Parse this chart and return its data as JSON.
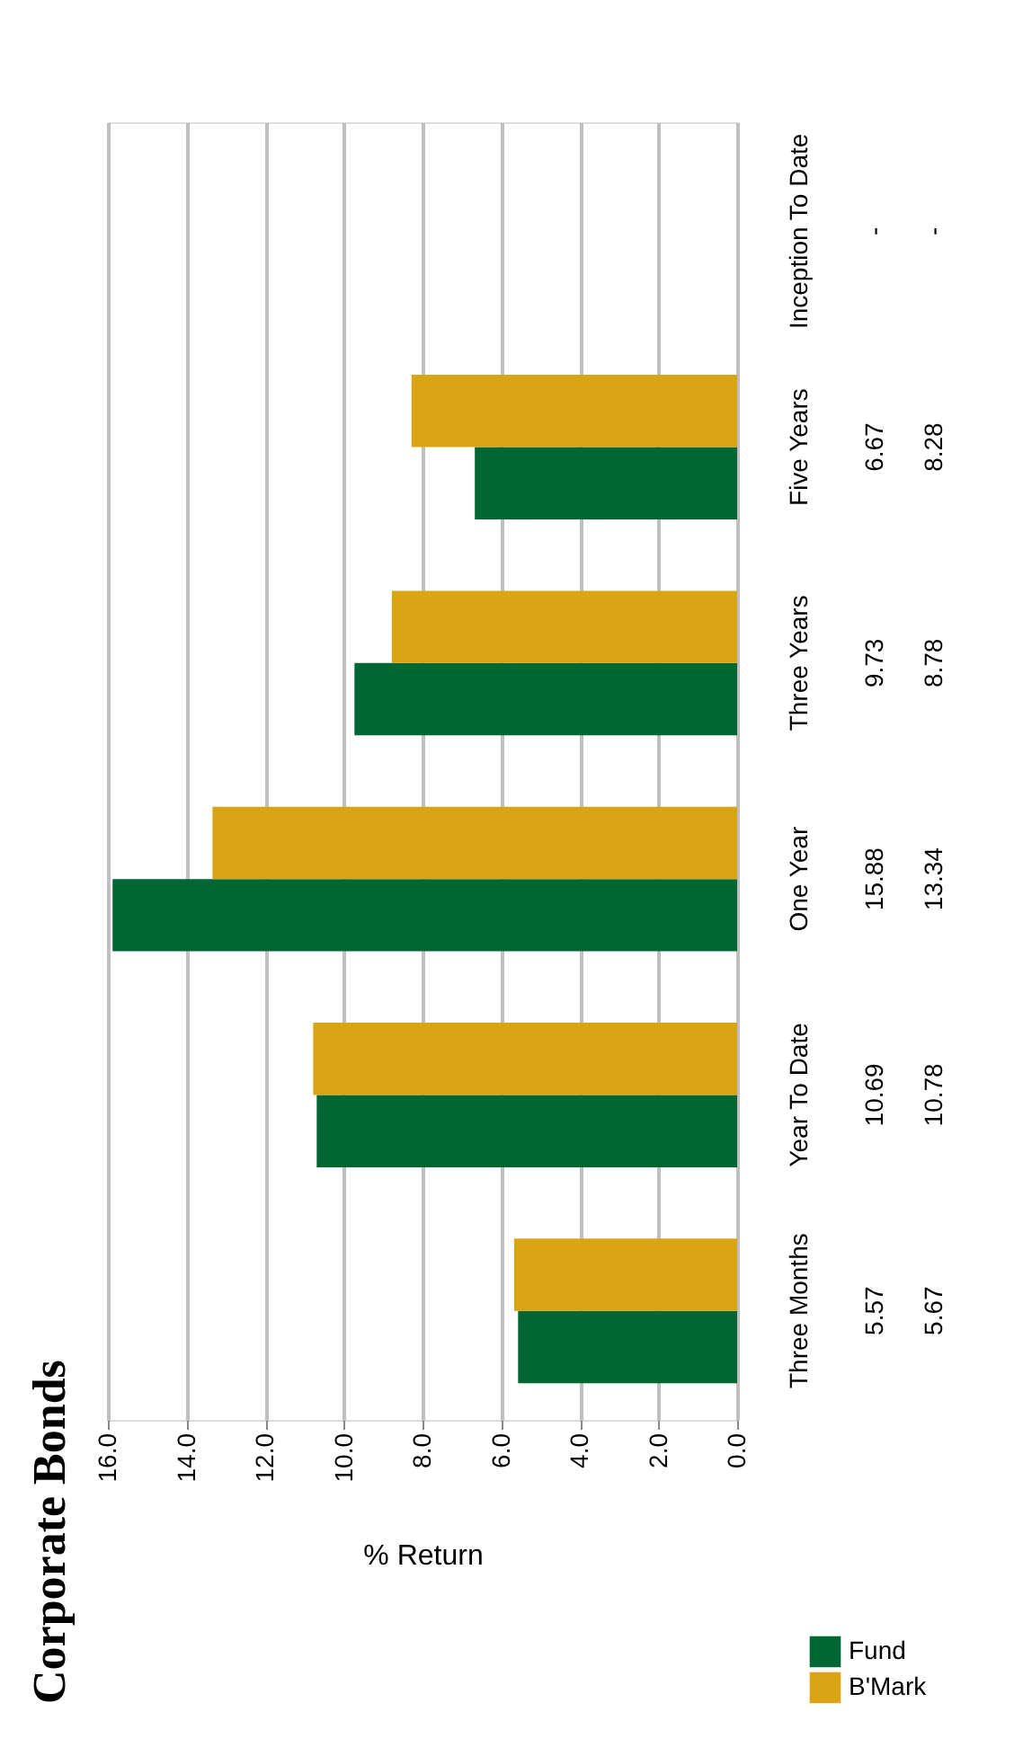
{
  "chart_data": {
    "type": "bar",
    "orientation": "horizontal",
    "title": "Corporate Bonds",
    "xlabel": "% Return",
    "categories": [
      "Inception To Date",
      "Five Years",
      "Three Years",
      "One Year",
      "Year To Date",
      "Three Months"
    ],
    "series": [
      {
        "name": "Fund",
        "color": "#006633",
        "values": [
          null,
          6.67,
          9.73,
          15.88,
          10.69,
          5.57
        ],
        "value_labels": [
          "-",
          "6.67",
          "9.73",
          "15.88",
          "10.69",
          "5.57"
        ]
      },
      {
        "name": "B'Mark",
        "color": "#d9a514",
        "values": [
          null,
          8.28,
          8.78,
          13.34,
          10.78,
          5.67
        ],
        "value_labels": [
          "-",
          "8.28",
          "8.78",
          "13.34",
          "10.78",
          "5.67"
        ]
      }
    ],
    "xlim": [
      16,
      0
    ],
    "xticks": [
      {
        "value": 0,
        "label": "0.0"
      },
      {
        "value": 2,
        "label": "2.0"
      },
      {
        "value": 4,
        "label": "4.0"
      },
      {
        "value": 6,
        "label": "6.0"
      },
      {
        "value": 8,
        "label": "8.0"
      },
      {
        "value": 10,
        "label": "10.0"
      },
      {
        "value": 12,
        "label": "12.0"
      },
      {
        "value": 14,
        "label": "14.0"
      },
      {
        "value": 16,
        "label": "16.0"
      }
    ],
    "grid": "x",
    "legend": "bottom right"
  }
}
